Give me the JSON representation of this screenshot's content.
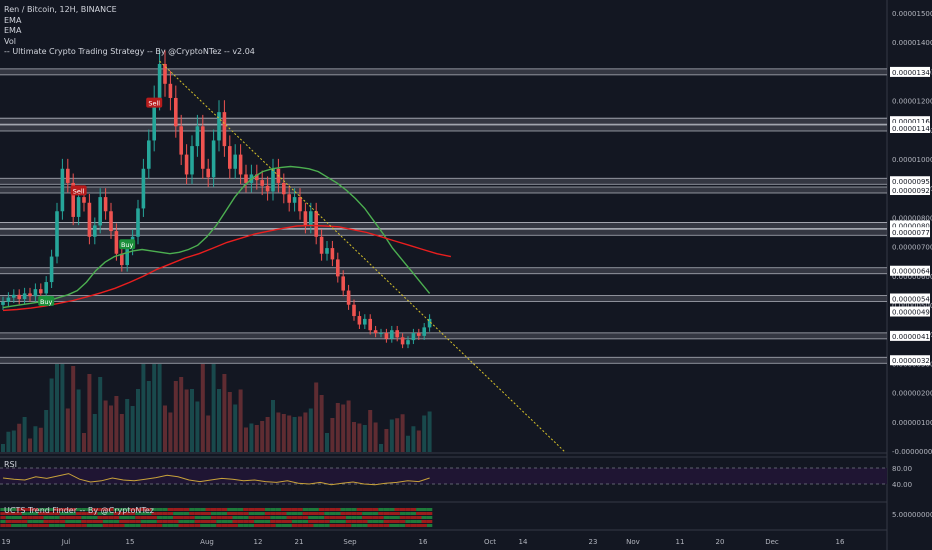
{
  "legend": {
    "symbol_line": "Ren / Bitcoin, 12H, BINANCE",
    "indicators": [
      "EMA",
      "EMA",
      "Vol",
      "-- Ultimate Crypto Trading Strategy -- By @CryptoNTez -- v2.04"
    ]
  },
  "rsi_pane": {
    "label": "RSI",
    "ticks": [
      "80.00",
      "40.00"
    ]
  },
  "trend_pane": {
    "label": "UCTS Trend Finder -- By @CryptoNTez",
    "tick": "5.00000000"
  },
  "colors": {
    "background": "#131722",
    "up_candle": "#26a69a",
    "down_candle": "#ef5350",
    "ema_fast": "#4caf50",
    "ema_slow": "#e91e1e",
    "trendline": "#d4c02a",
    "rsi_line": "#c8a23a",
    "rsi_band": "#1f1533"
  },
  "chart_data": {
    "type": "candlestick",
    "title": "Ren / Bitcoin, 12H, BINANCE",
    "x_ticks": [
      "19",
      "Jul",
      "15",
      "Aug",
      "12",
      "21",
      "Sep",
      "16",
      "Oct",
      "14",
      "23",
      "Nov",
      "11",
      "20",
      "Dec",
      "16"
    ],
    "y_ticks": [
      "0.00001500",
      "0.00001400",
      "0.00001300",
      "0.00001200",
      "0.00001100",
      "0.00001000",
      "0.00000900",
      "0.00000800",
      "0.00000700",
      "0.00000600",
      "0.00000500",
      "0.00000400",
      "0.00000300",
      "0.00000200",
      "0.00000100",
      "-0.00000000"
    ],
    "ylim": [
      0,
      1.55e-05
    ],
    "price_labels": [
      "0.00001342",
      "0.00001168",
      "0.00001144",
      "0.00000956",
      "0.00000925",
      "0.00000800",
      "0.00000776",
      "0.00000640",
      "0.00000542",
      "0.00000496",
      "0.00000410",
      "0.00000324"
    ],
    "support_resistance_levels": [
      1.342e-05,
      1.168e-05,
      1.144e-05,
      9.56e-06,
      9.25e-06,
      8e-06,
      7.76e-06,
      6.4e-06,
      5.42e-06,
      4.1e-06,
      3.24e-06
    ],
    "signals": [
      {
        "label": "Sell",
        "date_index": 28,
        "price": 1.23e-05
      },
      {
        "label": "Sell",
        "date_index": 14,
        "price": 9.2e-06
      },
      {
        "label": "Buy",
        "date_index": 23,
        "price": 7.3e-06
      },
      {
        "label": "Buy",
        "date_index": 8,
        "price": 5.3e-06
      }
    ],
    "close": [
      5.3e-06,
      5.45e-06,
      5.55e-06,
      5.4e-06,
      5.6e-06,
      5.5e-06,
      5.75e-06,
      5.6e-06,
      6e-06,
      6.9e-06,
      8.5e-06,
      1e-05,
      9.5e-06,
      8.3e-06,
      9e-06,
      8.8e-06,
      7.6e-06,
      8e-06,
      9e-06,
      8.5e-06,
      7.8e-06,
      7e-06,
      6.6e-06,
      7.2e-06,
      7.6e-06,
      8.6e-06,
      1e-05,
      1.1e-05,
      1.25e-05,
      1.37e-05,
      1.3e-05,
      1.25e-05,
      1.15e-05,
      1.05e-05,
      9.8e-06,
      1.08e-05,
      1.15e-05,
      1e-05,
      9.7e-06,
      1.1e-05,
      1.2e-05,
      1.08e-05,
      1e-05,
      1.05e-05,
      9.8e-06,
      9.5e-06,
      9.8e-06,
      9.6e-06,
      9.4e-06,
      9.2e-06,
      1e-05,
      9.5e-06,
      9.1e-06,
      8.8e-06,
      9e-06,
      8.5e-06,
      8e-06,
      8.5e-06,
      7.6e-06,
      7e-06,
      7.2e-06,
      6.8e-06,
      6.2e-06,
      5.7e-06,
      5.2e-06,
      4.8e-06,
      4.5e-06,
      4.7e-06,
      4.3e-06,
      4.2e-06,
      4.2e-06,
      4e-06,
      4.3e-06,
      4.05e-06,
      3.8e-06,
      3.95e-06,
      4.2e-06,
      4.1e-06,
      4.4e-06,
      4.7e-06
    ],
    "ema_fast": [
      5.1e-06,
      5.15e-06,
      5.2e-06,
      5.25e-06,
      5.3e-06,
      5.35e-06,
      5.45e-06,
      5.55e-06,
      5.7e-06,
      6e-06,
      6.4e-06,
      6.7e-06,
      6.9e-06,
      7e-06,
      7.1e-06,
      7.15e-06,
      7.1e-06,
      7.05e-06,
      7e-06,
      7.05e-06,
      7.15e-06,
      7.3e-06,
      7.6e-06,
      8e-06,
      8.5e-06,
      9e-06,
      9.4e-06,
      9.7e-06,
      9.9e-06,
      1e-05,
      1.005e-05,
      1.008e-05,
      1.005e-05,
      1e-05,
      9.9e-06,
      9.7e-06,
      9.5e-06,
      9.25e-06,
      8.95e-06,
      8.6e-06,
      8.15e-06,
      7.7e-06,
      7.2e-06,
      6.8e-06,
      6.4e-06,
      6e-06,
      5.6e-06
    ],
    "ema_slow": [
      5e-06,
      5.03e-06,
      5.08e-06,
      5.15e-06,
      5.25e-06,
      5.35e-06,
      5.48e-06,
      5.62e-06,
      5.78e-06,
      5.98e-06,
      6.2e-06,
      6.45e-06,
      6.65e-06,
      6.85e-06,
      7e-06,
      7.2e-06,
      7.4e-06,
      7.55e-06,
      7.7e-06,
      7.8e-06,
      7.9e-06,
      7.98e-06,
      8e-06,
      7.98e-06,
      7.95e-06,
      7.85e-06,
      7.75e-06,
      7.6e-06,
      7.45e-06,
      7.3e-06,
      7.15e-06,
      7e-06,
      6.9e-06
    ],
    "rsi": [
      55,
      52,
      50,
      58,
      54,
      60,
      66,
      52,
      45,
      48,
      55,
      50,
      48,
      52,
      56,
      62,
      58,
      50,
      46,
      50,
      54,
      52,
      48,
      50,
      46,
      44,
      48,
      42,
      40,
      44,
      38,
      42,
      45,
      40,
      38,
      42,
      44,
      48,
      46,
      55
    ],
    "rsi_ylim": [
      0,
      100
    ]
  }
}
